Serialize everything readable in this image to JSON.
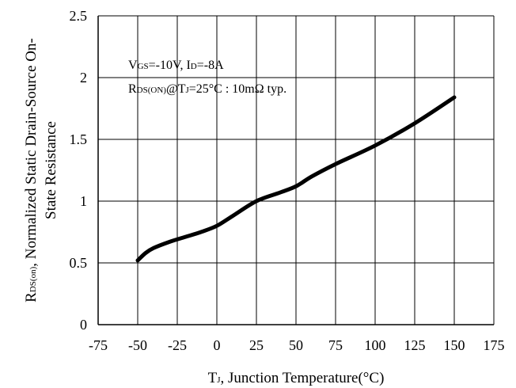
{
  "chart_data": {
    "type": "line",
    "xlim": [
      -75,
      175
    ],
    "ylim": [
      0,
      2.5
    ],
    "x_ticks": [
      "-75",
      "-50",
      "-25",
      "0",
      "25",
      "50",
      "75",
      "100",
      "125",
      "150",
      "175"
    ],
    "y_ticks": [
      "0",
      "0.5",
      "1",
      "1.5",
      "2",
      "2.5"
    ],
    "grid": true,
    "x": [
      -50,
      -45,
      -40,
      -30,
      -20,
      -10,
      0,
      10,
      25,
      40,
      50,
      60,
      75,
      100,
      125,
      150
    ],
    "y": [
      0.52,
      0.58,
      0.62,
      0.67,
      0.71,
      0.75,
      0.8,
      0.88,
      1.0,
      1.07,
      1.12,
      1.2,
      1.3,
      1.45,
      1.63,
      1.84
    ],
    "xlabel": {
      "main": "T",
      "sub": "J",
      "rest": ", Junction Temperature(°C)"
    },
    "ylabel": {
      "line1_main": "R",
      "line1_sub": "DS(on)",
      "line1_rest": ", Normalized Static Drain-Source On-",
      "line2": "State Resistance"
    },
    "annotation": {
      "line1": {
        "a": "V",
        "a_sub": "GS",
        "b": "=-10V, I",
        "b_sub": "D",
        "c": "=-8A"
      },
      "line2": {
        "a": "R",
        "a_sub": "DS(ON)",
        "b": "@T",
        "b_sub": "J",
        "c": "=25°C : 10mΩ typ."
      }
    }
  }
}
